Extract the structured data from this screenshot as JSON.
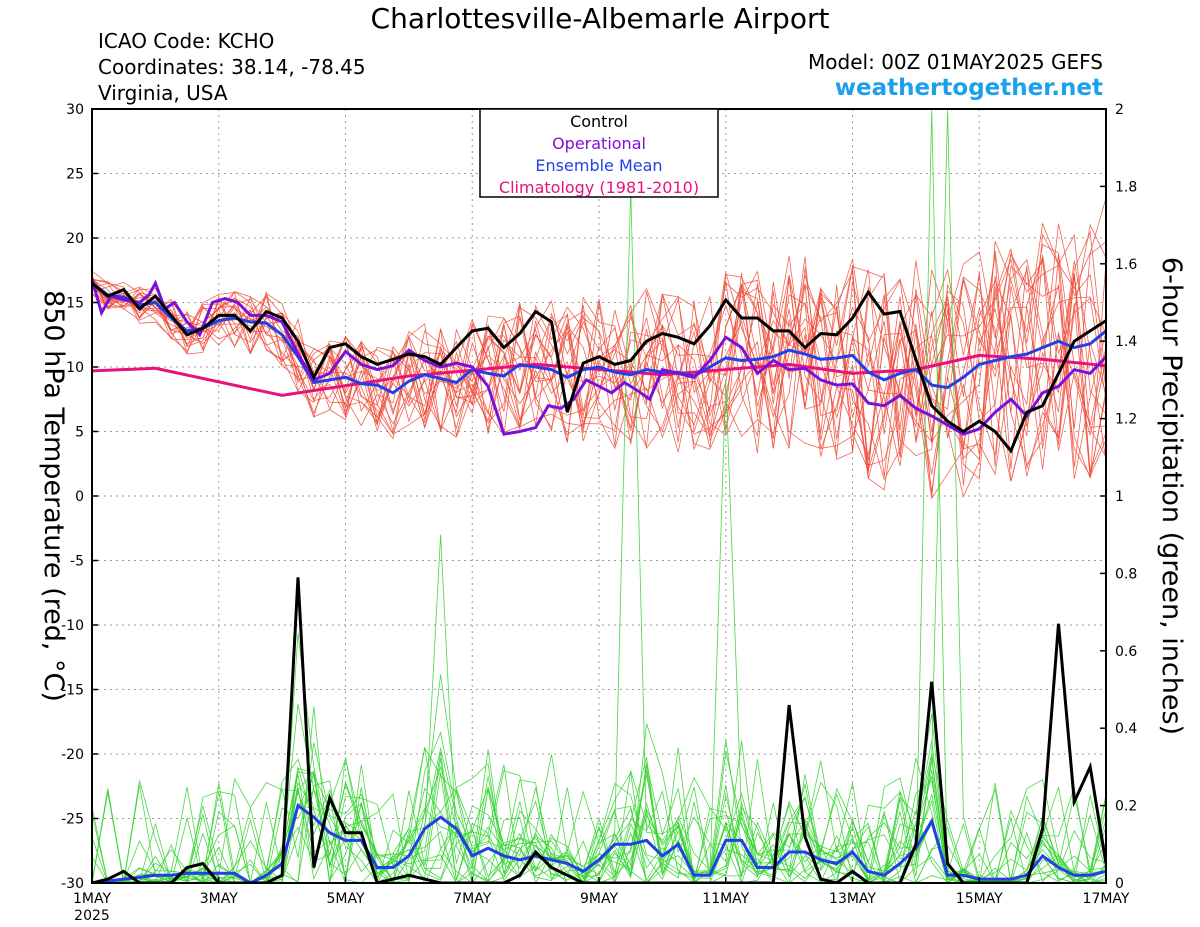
{
  "header": {
    "title": "Charlottesville-Albemarle Airport",
    "icao": "ICAO Code: KCHO",
    "coordinates": "Coordinates: 38.14, -78.45",
    "region": "Virginia, USA",
    "model": "Model: 00Z 01MAY2025 GEFS",
    "site": "weathertogether.net"
  },
  "colors": {
    "control": "#000000",
    "operational": "#7b11d6",
    "ensemble_mean": "#2140e8",
    "climatology": "#e8117e",
    "member_temp": "#f04a36",
    "member_precip": "#35d431",
    "site_text": "#1ca0ec"
  },
  "chart_data": {
    "type": "line",
    "title": "Charlottesville-Albemarle Airport",
    "ylabel": "850 hPa Temperature (red, °C)",
    "ylabel_right": "6-hour Precipitation (green, inches)",
    "x_ticks": [
      "1MAY",
      "3MAY",
      "5MAY",
      "7MAY",
      "9MAY",
      "11MAY",
      "13MAY",
      "15MAY",
      "17MAY"
    ],
    "x_year": "2025",
    "x_range_days": [
      1,
      17
    ],
    "ylim": [
      -30,
      30
    ],
    "y_ticks": [
      30,
      25,
      20,
      15,
      10,
      5,
      0,
      -5,
      -10,
      -15,
      -20,
      -25,
      -30
    ],
    "ylim_right": [
      0,
      2
    ],
    "y_ticks_right": [
      "2",
      "1.8",
      "1.6",
      "1.4",
      "1.2",
      "1",
      "0.8",
      "0.6",
      "0.4",
      "0.2",
      "0"
    ],
    "legend": {
      "placement": "top-center",
      "entries": [
        "Control",
        "Operational",
        "Ensemble Mean",
        "Climatology (1981-2010)"
      ]
    },
    "temperature": {
      "control": [
        [
          1.0,
          16.5
        ],
        [
          1.25,
          15.5
        ],
        [
          1.5,
          16.0
        ],
        [
          1.75,
          14.5
        ],
        [
          2.0,
          15.5
        ],
        [
          2.25,
          14.0
        ],
        [
          2.5,
          12.5
        ],
        [
          2.75,
          13.0
        ],
        [
          3.0,
          14.0
        ],
        [
          3.25,
          14.0
        ],
        [
          3.5,
          12.8
        ],
        [
          3.75,
          14.3
        ],
        [
          4.0,
          13.8
        ],
        [
          4.25,
          12.0
        ],
        [
          4.5,
          9.2
        ],
        [
          4.75,
          11.5
        ],
        [
          5.0,
          11.8
        ],
        [
          5.25,
          10.8
        ],
        [
          5.5,
          10.2
        ],
        [
          5.75,
          10.6
        ],
        [
          6.0,
          11.0
        ],
        [
          6.25,
          10.8
        ],
        [
          6.5,
          10.2
        ],
        [
          6.75,
          11.5
        ],
        [
          7.0,
          12.8
        ],
        [
          7.25,
          13.0
        ],
        [
          7.5,
          11.5
        ],
        [
          7.75,
          12.6
        ],
        [
          8.0,
          14.3
        ],
        [
          8.25,
          13.5
        ],
        [
          8.5,
          6.5
        ],
        [
          8.75,
          10.3
        ],
        [
          9.0,
          10.8
        ],
        [
          9.25,
          10.2
        ],
        [
          9.5,
          10.5
        ],
        [
          9.75,
          12.0
        ],
        [
          10.0,
          12.6
        ],
        [
          10.25,
          12.3
        ],
        [
          10.5,
          11.8
        ],
        [
          10.75,
          13.2
        ],
        [
          11.0,
          15.2
        ],
        [
          11.25,
          13.8
        ],
        [
          11.5,
          13.8
        ],
        [
          11.75,
          12.8
        ],
        [
          12.0,
          12.8
        ],
        [
          12.25,
          11.5
        ],
        [
          12.5,
          12.6
        ],
        [
          12.75,
          12.5
        ],
        [
          13.0,
          13.8
        ],
        [
          13.25,
          15.8
        ],
        [
          13.5,
          14.1
        ],
        [
          13.75,
          14.3
        ],
        [
          14.0,
          10.6
        ],
        [
          14.25,
          7.0
        ],
        [
          14.5,
          5.8
        ],
        [
          14.75,
          5.0
        ],
        [
          15.0,
          5.8
        ],
        [
          15.25,
          5.0
        ],
        [
          15.5,
          3.5
        ],
        [
          15.75,
          6.5
        ],
        [
          16.0,
          7.0
        ],
        [
          16.25,
          9.5
        ],
        [
          16.5,
          12.0
        ],
        [
          16.75,
          12.8
        ],
        [
          17.0,
          13.6
        ]
      ],
      "operational": [
        [
          1.0,
          16.8
        ],
        [
          1.15,
          14.2
        ],
        [
          1.3,
          15.5
        ],
        [
          1.5,
          15.2
        ],
        [
          1.75,
          15.0
        ],
        [
          1.9,
          15.6
        ],
        [
          2.0,
          16.5
        ],
        [
          2.15,
          14.5
        ],
        [
          2.3,
          15.0
        ],
        [
          2.5,
          13.5
        ],
        [
          2.7,
          12.5
        ],
        [
          2.9,
          15.0
        ],
        [
          3.1,
          15.3
        ],
        [
          3.3,
          15.0
        ],
        [
          3.5,
          14.0
        ],
        [
          3.75,
          14.0
        ],
        [
          4.0,
          13.5
        ],
        [
          4.25,
          11.0
        ],
        [
          4.5,
          9.0
        ],
        [
          4.75,
          9.5
        ],
        [
          5.0,
          11.2
        ],
        [
          5.25,
          10.2
        ],
        [
          5.5,
          9.8
        ],
        [
          5.75,
          10.1
        ],
        [
          6.0,
          11.3
        ],
        [
          6.25,
          10.5
        ],
        [
          6.5,
          10.0
        ],
        [
          6.75,
          10.3
        ],
        [
          7.0,
          10.0
        ],
        [
          7.25,
          8.5
        ],
        [
          7.5,
          4.8
        ],
        [
          7.75,
          5.0
        ],
        [
          8.0,
          5.3
        ],
        [
          8.2,
          7.0
        ],
        [
          8.4,
          6.8
        ],
        [
          8.6,
          7.5
        ],
        [
          8.8,
          9.0
        ],
        [
          9.0,
          8.5
        ],
        [
          9.2,
          8.0
        ],
        [
          9.4,
          8.8
        ],
        [
          9.6,
          8.2
        ],
        [
          9.8,
          7.5
        ],
        [
          10.0,
          9.8
        ],
        [
          10.25,
          9.5
        ],
        [
          10.5,
          9.2
        ],
        [
          10.75,
          10.5
        ],
        [
          11.0,
          12.3
        ],
        [
          11.25,
          11.5
        ],
        [
          11.5,
          9.5
        ],
        [
          11.75,
          10.5
        ],
        [
          12.0,
          9.8
        ],
        [
          12.25,
          9.9
        ],
        [
          12.5,
          9.0
        ],
        [
          12.75,
          8.6
        ],
        [
          13.0,
          8.7
        ],
        [
          13.25,
          7.2
        ],
        [
          13.5,
          7.0
        ],
        [
          13.75,
          7.8
        ],
        [
          14.0,
          6.8
        ],
        [
          14.25,
          6.2
        ],
        [
          14.5,
          5.5
        ],
        [
          14.75,
          4.8
        ],
        [
          15.0,
          5.2
        ],
        [
          15.25,
          6.5
        ],
        [
          15.5,
          7.5
        ],
        [
          15.75,
          6.2
        ],
        [
          16.0,
          8.0
        ],
        [
          16.25,
          8.5
        ],
        [
          16.5,
          9.8
        ],
        [
          16.75,
          9.5
        ],
        [
          17.0,
          10.8
        ]
      ],
      "ensemble_mean": [
        [
          1.0,
          16.5
        ],
        [
          1.25,
          15.6
        ],
        [
          1.5,
          15.4
        ],
        [
          1.75,
          14.8
        ],
        [
          2.0,
          15.0
        ],
        [
          2.25,
          13.8
        ],
        [
          2.5,
          12.8
        ],
        [
          2.75,
          13.0
        ],
        [
          3.0,
          13.6
        ],
        [
          3.25,
          13.8
        ],
        [
          3.5,
          13.5
        ],
        [
          3.75,
          13.4
        ],
        [
          4.0,
          12.5
        ],
        [
          4.25,
          10.8
        ],
        [
          4.5,
          8.8
        ],
        [
          4.75,
          9.0
        ],
        [
          5.0,
          9.2
        ],
        [
          5.25,
          8.7
        ],
        [
          5.5,
          8.6
        ],
        [
          5.75,
          8.0
        ],
        [
          6.0,
          8.9
        ],
        [
          6.25,
          9.4
        ],
        [
          6.5,
          9.1
        ],
        [
          6.75,
          8.8
        ],
        [
          7.0,
          9.8
        ],
        [
          7.25,
          9.5
        ],
        [
          7.5,
          9.3
        ],
        [
          7.75,
          10.2
        ],
        [
          8.0,
          10.0
        ],
        [
          8.25,
          9.8
        ],
        [
          8.5,
          9.2
        ],
        [
          8.75,
          9.8
        ],
        [
          9.0,
          10.0
        ],
        [
          9.25,
          9.6
        ],
        [
          9.5,
          9.4
        ],
        [
          9.75,
          9.8
        ],
        [
          10.0,
          9.6
        ],
        [
          10.25,
          9.6
        ],
        [
          10.5,
          9.3
        ],
        [
          10.75,
          10.0
        ],
        [
          11.0,
          10.7
        ],
        [
          11.25,
          10.5
        ],
        [
          11.5,
          10.6
        ],
        [
          11.75,
          10.8
        ],
        [
          12.0,
          11.3
        ],
        [
          12.25,
          11.0
        ],
        [
          12.5,
          10.6
        ],
        [
          12.75,
          10.7
        ],
        [
          13.0,
          10.9
        ],
        [
          13.25,
          9.6
        ],
        [
          13.5,
          9.0
        ],
        [
          13.75,
          9.5
        ],
        [
          14.0,
          9.8
        ],
        [
          14.25,
          8.6
        ],
        [
          14.5,
          8.4
        ],
        [
          14.75,
          9.2
        ],
        [
          15.0,
          10.2
        ],
        [
          15.25,
          10.5
        ],
        [
          15.5,
          10.8
        ],
        [
          15.75,
          11.0
        ],
        [
          16.0,
          11.5
        ],
        [
          16.25,
          12.0
        ],
        [
          16.5,
          11.5
        ],
        [
          16.75,
          11.8
        ],
        [
          17.0,
          12.8
        ]
      ],
      "climatology": [
        [
          1.0,
          9.7
        ],
        [
          2.0,
          9.9
        ],
        [
          4.0,
          7.8
        ],
        [
          6.0,
          9.3
        ],
        [
          8.0,
          10.2
        ],
        [
          10.0,
          9.4
        ],
        [
          12.0,
          10.2
        ],
        [
          13.0,
          9.5
        ],
        [
          14.0,
          9.8
        ],
        [
          15.0,
          10.9
        ],
        [
          16.0,
          10.6
        ],
        [
          17.0,
          10.1
        ]
      ]
    },
    "precipitation": {
      "control": [
        [
          1.0,
          0.0
        ],
        [
          1.25,
          0.01
        ],
        [
          1.5,
          0.03
        ],
        [
          1.75,
          0.0
        ],
        [
          2.0,
          0.0
        ],
        [
          2.25,
          0.0
        ],
        [
          2.5,
          0.04
        ],
        [
          2.75,
          0.05
        ],
        [
          3.0,
          0.0
        ],
        [
          3.25,
          0.0
        ],
        [
          3.5,
          0.0
        ],
        [
          3.75,
          0.0
        ],
        [
          4.0,
          0.02
        ],
        [
          4.25,
          0.79
        ],
        [
          4.5,
          0.04
        ],
        [
          4.75,
          0.22
        ],
        [
          5.0,
          0.13
        ],
        [
          5.25,
          0.13
        ],
        [
          5.5,
          0.0
        ],
        [
          5.75,
          0.01
        ],
        [
          6.0,
          0.02
        ],
        [
          6.25,
          0.01
        ],
        [
          6.5,
          0.0
        ],
        [
          6.75,
          0.0
        ],
        [
          7.0,
          0.0
        ],
        [
          7.25,
          0.0
        ],
        [
          7.5,
          0.0
        ],
        [
          7.75,
          0.02
        ],
        [
          8.0,
          0.08
        ],
        [
          8.25,
          0.04
        ],
        [
          8.5,
          0.02
        ],
        [
          8.75,
          0.0
        ],
        [
          9.0,
          0.0
        ],
        [
          9.25,
          0.0
        ],
        [
          9.5,
          0.0
        ],
        [
          9.75,
          0.0
        ],
        [
          10.0,
          0.0
        ],
        [
          10.25,
          0.0
        ],
        [
          10.5,
          0.0
        ],
        [
          10.75,
          0.0
        ],
        [
          11.0,
          0.0
        ],
        [
          11.25,
          0.0
        ],
        [
          11.5,
          0.0
        ],
        [
          11.75,
          0.0
        ],
        [
          12.0,
          0.46
        ],
        [
          12.25,
          0.12
        ],
        [
          12.5,
          0.01
        ],
        [
          12.75,
          0.0
        ],
        [
          13.0,
          0.03
        ],
        [
          13.25,
          0.0
        ],
        [
          13.5,
          0.0
        ],
        [
          13.75,
          0.0
        ],
        [
          14.0,
          0.1
        ],
        [
          14.25,
          0.52
        ],
        [
          14.5,
          0.05
        ],
        [
          14.75,
          0.0
        ],
        [
          15.0,
          0.0
        ],
        [
          15.25,
          0.0
        ],
        [
          15.5,
          0.0
        ],
        [
          15.75,
          0.0
        ],
        [
          16.0,
          0.14
        ],
        [
          16.25,
          0.67
        ],
        [
          16.5,
          0.21
        ],
        [
          16.75,
          0.3
        ],
        [
          17.0,
          0.05
        ]
      ],
      "ensemble_mean": [
        [
          1.0,
          0.0
        ],
        [
          1.25,
          0.005
        ],
        [
          1.5,
          0.01
        ],
        [
          1.75,
          0.015
        ],
        [
          2.0,
          0.02
        ],
        [
          2.25,
          0.02
        ],
        [
          2.5,
          0.025
        ],
        [
          2.75,
          0.025
        ],
        [
          3.0,
          0.025
        ],
        [
          3.25,
          0.025
        ],
        [
          3.5,
          0.0
        ],
        [
          3.75,
          0.02
        ],
        [
          4.0,
          0.05
        ],
        [
          4.25,
          0.2
        ],
        [
          4.5,
          0.17
        ],
        [
          4.75,
          0.13
        ],
        [
          5.0,
          0.11
        ],
        [
          5.25,
          0.11
        ],
        [
          5.5,
          0.04
        ],
        [
          5.75,
          0.04
        ],
        [
          6.0,
          0.07
        ],
        [
          6.25,
          0.14
        ],
        [
          6.5,
          0.17
        ],
        [
          6.75,
          0.14
        ],
        [
          7.0,
          0.07
        ],
        [
          7.25,
          0.09
        ],
        [
          7.5,
          0.07
        ],
        [
          7.75,
          0.06
        ],
        [
          8.0,
          0.07
        ],
        [
          8.25,
          0.06
        ],
        [
          8.5,
          0.05
        ],
        [
          8.75,
          0.03
        ],
        [
          9.0,
          0.06
        ],
        [
          9.25,
          0.1
        ],
        [
          9.5,
          0.1
        ],
        [
          9.75,
          0.11
        ],
        [
          10.0,
          0.07
        ],
        [
          10.25,
          0.1
        ],
        [
          10.5,
          0.02
        ],
        [
          10.75,
          0.02
        ],
        [
          11.0,
          0.11
        ],
        [
          11.25,
          0.11
        ],
        [
          11.5,
          0.04
        ],
        [
          11.75,
          0.04
        ],
        [
          12.0,
          0.08
        ],
        [
          12.25,
          0.08
        ],
        [
          12.5,
          0.06
        ],
        [
          12.75,
          0.05
        ],
        [
          13.0,
          0.08
        ],
        [
          13.25,
          0.03
        ],
        [
          13.5,
          0.02
        ],
        [
          13.75,
          0.05
        ],
        [
          14.0,
          0.09
        ],
        [
          14.25,
          0.16
        ],
        [
          14.5,
          0.02
        ],
        [
          14.75,
          0.02
        ],
        [
          15.0,
          0.01
        ],
        [
          15.25,
          0.01
        ],
        [
          15.5,
          0.01
        ],
        [
          15.75,
          0.02
        ],
        [
          16.0,
          0.07
        ],
        [
          16.25,
          0.04
        ],
        [
          16.5,
          0.02
        ],
        [
          16.75,
          0.02
        ],
        [
          17.0,
          0.03
        ]
      ]
    },
    "member_count": 20,
    "notable_member_peaks": [
      {
        "day": 9.5,
        "value": 1.8
      },
      {
        "day": 14.2,
        "value": 2.0
      },
      {
        "day": 14.4,
        "value": 2.0
      },
      {
        "day": 11.0,
        "value": 1.3
      },
      {
        "day": 6.5,
        "value": 0.9
      }
    ]
  }
}
